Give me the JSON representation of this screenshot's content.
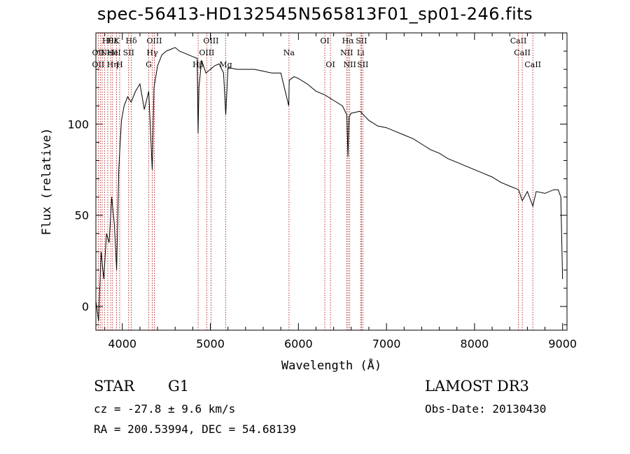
{
  "chart_data": {
    "type": "line",
    "title": "spec-56413-HD132545N565813F01_sp01-246.fits",
    "xlabel": "Wavelength (Å)",
    "ylabel": "Flux (relative)",
    "xlim": [
      3700,
      9050
    ],
    "ylim": [
      -13,
      150
    ],
    "x_ticks": [
      4000,
      5000,
      6000,
      7000,
      8000,
      9000
    ],
    "y_ticks": [
      0,
      50,
      100
    ],
    "grid": false,
    "series": [
      {
        "name": "spectrum",
        "x": [
          3700,
          3730,
          3760,
          3790,
          3820,
          3850,
          3880,
          3910,
          3935,
          3960,
          3970,
          3990,
          4020,
          4060,
          4101,
          4150,
          4200,
          4250,
          4300,
          4330,
          4340,
          4360,
          4400,
          4450,
          4500,
          4550,
          4600,
          4650,
          4700,
          4750,
          4800,
          4850,
          4861,
          4870,
          4900,
          4950,
          5000,
          5050,
          5100,
          5150,
          5175,
          5200,
          5300,
          5400,
          5500,
          5600,
          5700,
          5800,
          5890,
          5896,
          5950,
          6000,
          6100,
          6200,
          6300,
          6400,
          6500,
          6550,
          6563,
          6575,
          6600,
          6700,
          6800,
          6900,
          7000,
          7100,
          7200,
          7300,
          7400,
          7500,
          7600,
          7700,
          7800,
          7900,
          8000,
          8100,
          8200,
          8300,
          8400,
          8500,
          8542,
          8600,
          8662,
          8700,
          8800,
          8900,
          8950,
          8980,
          9000
        ],
        "y": [
          3,
          -8,
          30,
          15,
          40,
          35,
          60,
          45,
          20,
          75,
          85,
          102,
          110,
          115,
          112,
          118,
          122,
          108,
          118,
          85,
          75,
          120,
          132,
          138,
          140,
          141,
          142,
          140,
          139,
          138,
          137,
          136,
          95,
          120,
          135,
          128,
          130,
          132,
          133,
          128,
          105,
          131,
          130,
          130,
          130,
          129,
          128,
          128,
          110,
          124,
          126,
          125,
          122,
          118,
          116,
          113,
          110,
          105,
          82,
          104,
          106,
          107,
          102,
          99,
          98,
          96,
          94,
          92,
          89,
          86,
          84,
          81,
          79,
          77,
          75,
          73,
          71,
          68,
          66,
          64,
          58,
          63,
          55,
          63,
          62,
          64,
          64,
          60,
          15
        ]
      }
    ],
    "lines": [
      {
        "wl": 3727,
        "labels": [
          {
            "row": 1,
            "text": "OII"
          },
          {
            "row": 2,
            "text": "OII"
          }
        ]
      },
      {
        "wl": 3750,
        "labels": []
      },
      {
        "wl": 3771,
        "labels": []
      },
      {
        "wl": 3798,
        "labels": []
      },
      {
        "wl": 3835,
        "labels": [
          {
            "row": 0,
            "text": "Hθ"
          }
        ]
      },
      {
        "wl": 3868,
        "labels": [
          {
            "row": 1,
            "text": "NeIII"
          }
        ]
      },
      {
        "wl": 3889,
        "labels": [
          {
            "row": 0,
            "text": "Hε"
          },
          {
            "row": 1,
            "text": "He"
          },
          {
            "row": 2,
            "text": "Hη"
          }
        ]
      },
      {
        "wl": 3934,
        "labels": [
          {
            "row": 0,
            "text": "K"
          }
        ]
      },
      {
        "wl": 3970,
        "labels": [
          {
            "row": 2,
            "text": "H"
          }
        ]
      },
      {
        "wl": 4072,
        "labels": [
          {
            "row": 1,
            "text": "SII"
          }
        ]
      },
      {
        "wl": 4102,
        "labels": [
          {
            "row": 0,
            "text": "Hδ"
          }
        ]
      },
      {
        "wl": 4300,
        "labels": [
          {
            "row": 2,
            "text": "G"
          }
        ]
      },
      {
        "wl": 4340,
        "labels": [
          {
            "row": 1,
            "text": "Hγ"
          }
        ]
      },
      {
        "wl": 4363,
        "labels": [
          {
            "row": 0,
            "text": "OIII"
          }
        ]
      },
      {
        "wl": 4861,
        "labels": [
          {
            "row": 2,
            "text": "Hβ"
          }
        ]
      },
      {
        "wl": 4959,
        "labels": [
          {
            "row": 1,
            "text": "OIII"
          }
        ]
      },
      {
        "wl": 5007,
        "labels": [
          {
            "row": 0,
            "text": "OIII"
          }
        ]
      },
      {
        "wl": 5175,
        "labels": [
          {
            "row": 2,
            "text": "Mg"
          }
        ]
      },
      {
        "wl": 5893,
        "labels": [
          {
            "row": 1,
            "text": "Na"
          }
        ]
      },
      {
        "wl": 6300,
        "labels": [
          {
            "row": 0,
            "text": "OI"
          }
        ]
      },
      {
        "wl": 6364,
        "labels": [
          {
            "row": 2,
            "text": "OI"
          }
        ]
      },
      {
        "wl": 6548,
        "labels": [
          {
            "row": 1,
            "text": "NII"
          }
        ]
      },
      {
        "wl": 6563,
        "labels": [
          {
            "row": 0,
            "text": "Hα"
          }
        ]
      },
      {
        "wl": 6583,
        "labels": [
          {
            "row": 2,
            "text": "NII"
          }
        ]
      },
      {
        "wl": 6707,
        "labels": [
          {
            "row": 1,
            "text": "Li"
          }
        ]
      },
      {
        "wl": 6716,
        "labels": [
          {
            "row": 0,
            "text": "SII"
          }
        ]
      },
      {
        "wl": 6731,
        "labels": [
          {
            "row": 2,
            "text": "SII"
          }
        ]
      },
      {
        "wl": 8498,
        "labels": [
          {
            "row": 0,
            "text": "CaII"
          }
        ]
      },
      {
        "wl": 8542,
        "labels": [
          {
            "row": 1,
            "text": "CaII"
          }
        ]
      },
      {
        "wl": 8662,
        "labels": [
          {
            "row": 2,
            "text": "CaII"
          }
        ]
      }
    ]
  },
  "info": {
    "object_class": "STAR",
    "subclass": "G1",
    "survey": "LAMOST DR3",
    "cz_line": "cz = -27.8 ± 9.6 km/s",
    "obs_date_line": "Obs-Date: 20130430",
    "coords_line": "RA = 200.53994, DEC =  54.68139"
  },
  "colors": {
    "axis": "#000000",
    "spectrum": "#000000",
    "line_marker": "#a00000"
  }
}
